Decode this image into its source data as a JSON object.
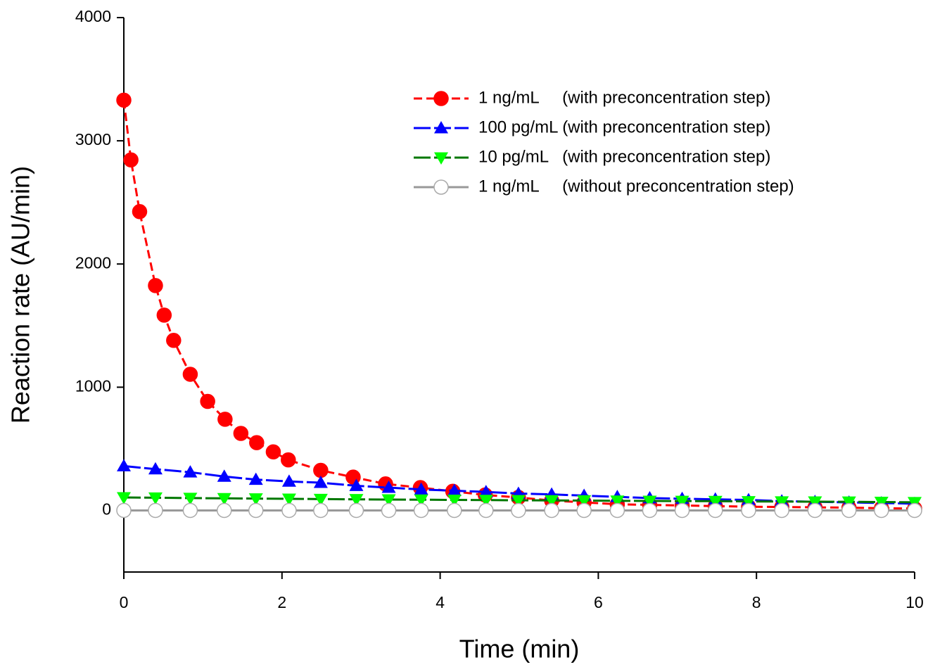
{
  "chart_data": {
    "type": "line",
    "xlabel": "Time (min)",
    "ylabel": "Reaction rate (AU/min)",
    "xlim": [
      0,
      10
    ],
    "ylim": [
      -500,
      4000
    ],
    "xticks": [
      0,
      2,
      4,
      6,
      8,
      10
    ],
    "yticks": [
      0,
      1000,
      2000,
      3000,
      4000
    ],
    "legend": "upper right",
    "series": [
      {
        "name": "1 ng/mL     (with preconcentration step)",
        "color": "#ff0000",
        "marker": "circle",
        "dash": "12 6",
        "x": [
          0,
          0.09,
          0.2,
          0.4,
          0.51,
          0.63,
          0.84,
          1.06,
          1.28,
          1.48,
          1.68,
          1.89,
          2.08,
          2.49,
          2.9,
          3.31,
          3.75,
          4.16,
          4.57,
          4.99,
          5.41,
          5.82,
          6.24,
          6.65,
          7.06,
          7.48,
          7.9,
          8.32,
          8.74,
          9.17,
          9.58,
          10
        ],
        "values": [
          3330,
          2845,
          2425,
          1825,
          1585,
          1380,
          1105,
          885,
          740,
          625,
          550,
          475,
          410,
          325,
          270,
          215,
          185,
          155,
          125,
          105,
          80,
          65,
          50,
          45,
          40,
          35,
          30,
          28,
          25,
          22,
          18,
          15
        ]
      },
      {
        "name": "100 pg/mL (with preconcentration step)",
        "color": "#0000ff",
        "marker": "triangle-up",
        "dash": "24 5",
        "x": [
          0,
          0.4,
          0.84,
          1.27,
          1.67,
          2.09,
          2.49,
          2.94,
          3.35,
          3.76,
          4.18,
          4.58,
          4.99,
          5.41,
          5.82,
          6.24,
          6.65,
          7.06,
          7.48,
          7.9,
          8.32,
          8.74,
          9.17,
          9.58,
          10
        ],
        "values": [
          360,
          335,
          310,
          275,
          250,
          235,
          225,
          200,
          185,
          170,
          160,
          150,
          137,
          130,
          120,
          110,
          100,
          95,
          90,
          85,
          75,
          70,
          65,
          60,
          55
        ]
      },
      {
        "name": "10 pg/mL   (with preconcentration step)",
        "color": "#007700",
        "markercolor": "#00ff00",
        "marker": "triangle-down",
        "dash": "24 5",
        "x": [
          0,
          0.4,
          0.84,
          1.27,
          1.67,
          2.09,
          2.49,
          2.94,
          3.35,
          3.76,
          4.18,
          4.58,
          4.99,
          5.41,
          5.82,
          6.24,
          6.65,
          7.06,
          7.48,
          7.9,
          8.32,
          8.74,
          9.17,
          9.58,
          10
        ],
        "values": [
          105,
          103,
          100,
          98,
          96,
          94,
          92,
          90,
          88,
          87,
          85,
          84,
          82,
          81,
          80,
          78,
          77,
          76,
          75,
          73,
          72,
          71,
          70,
          68,
          66
        ]
      },
      {
        "name": "1 ng/mL     (without preconcentration step)",
        "color": "#999999",
        "markercolor": "#ffffff",
        "marker": "open-circle",
        "dash": "",
        "x": [
          0,
          0.4,
          0.84,
          1.27,
          1.67,
          2.09,
          2.49,
          2.94,
          3.35,
          3.76,
          4.18,
          4.58,
          4.99,
          5.41,
          5.82,
          6.24,
          6.65,
          7.06,
          7.48,
          7.9,
          8.32,
          8.74,
          9.17,
          9.58,
          10
        ],
        "values": [
          0,
          0,
          0,
          0,
          0,
          0,
          0,
          0,
          0,
          0,
          0,
          0,
          0,
          0,
          0,
          0,
          0,
          0,
          0,
          0,
          0,
          0,
          0,
          0,
          0
        ]
      }
    ]
  }
}
